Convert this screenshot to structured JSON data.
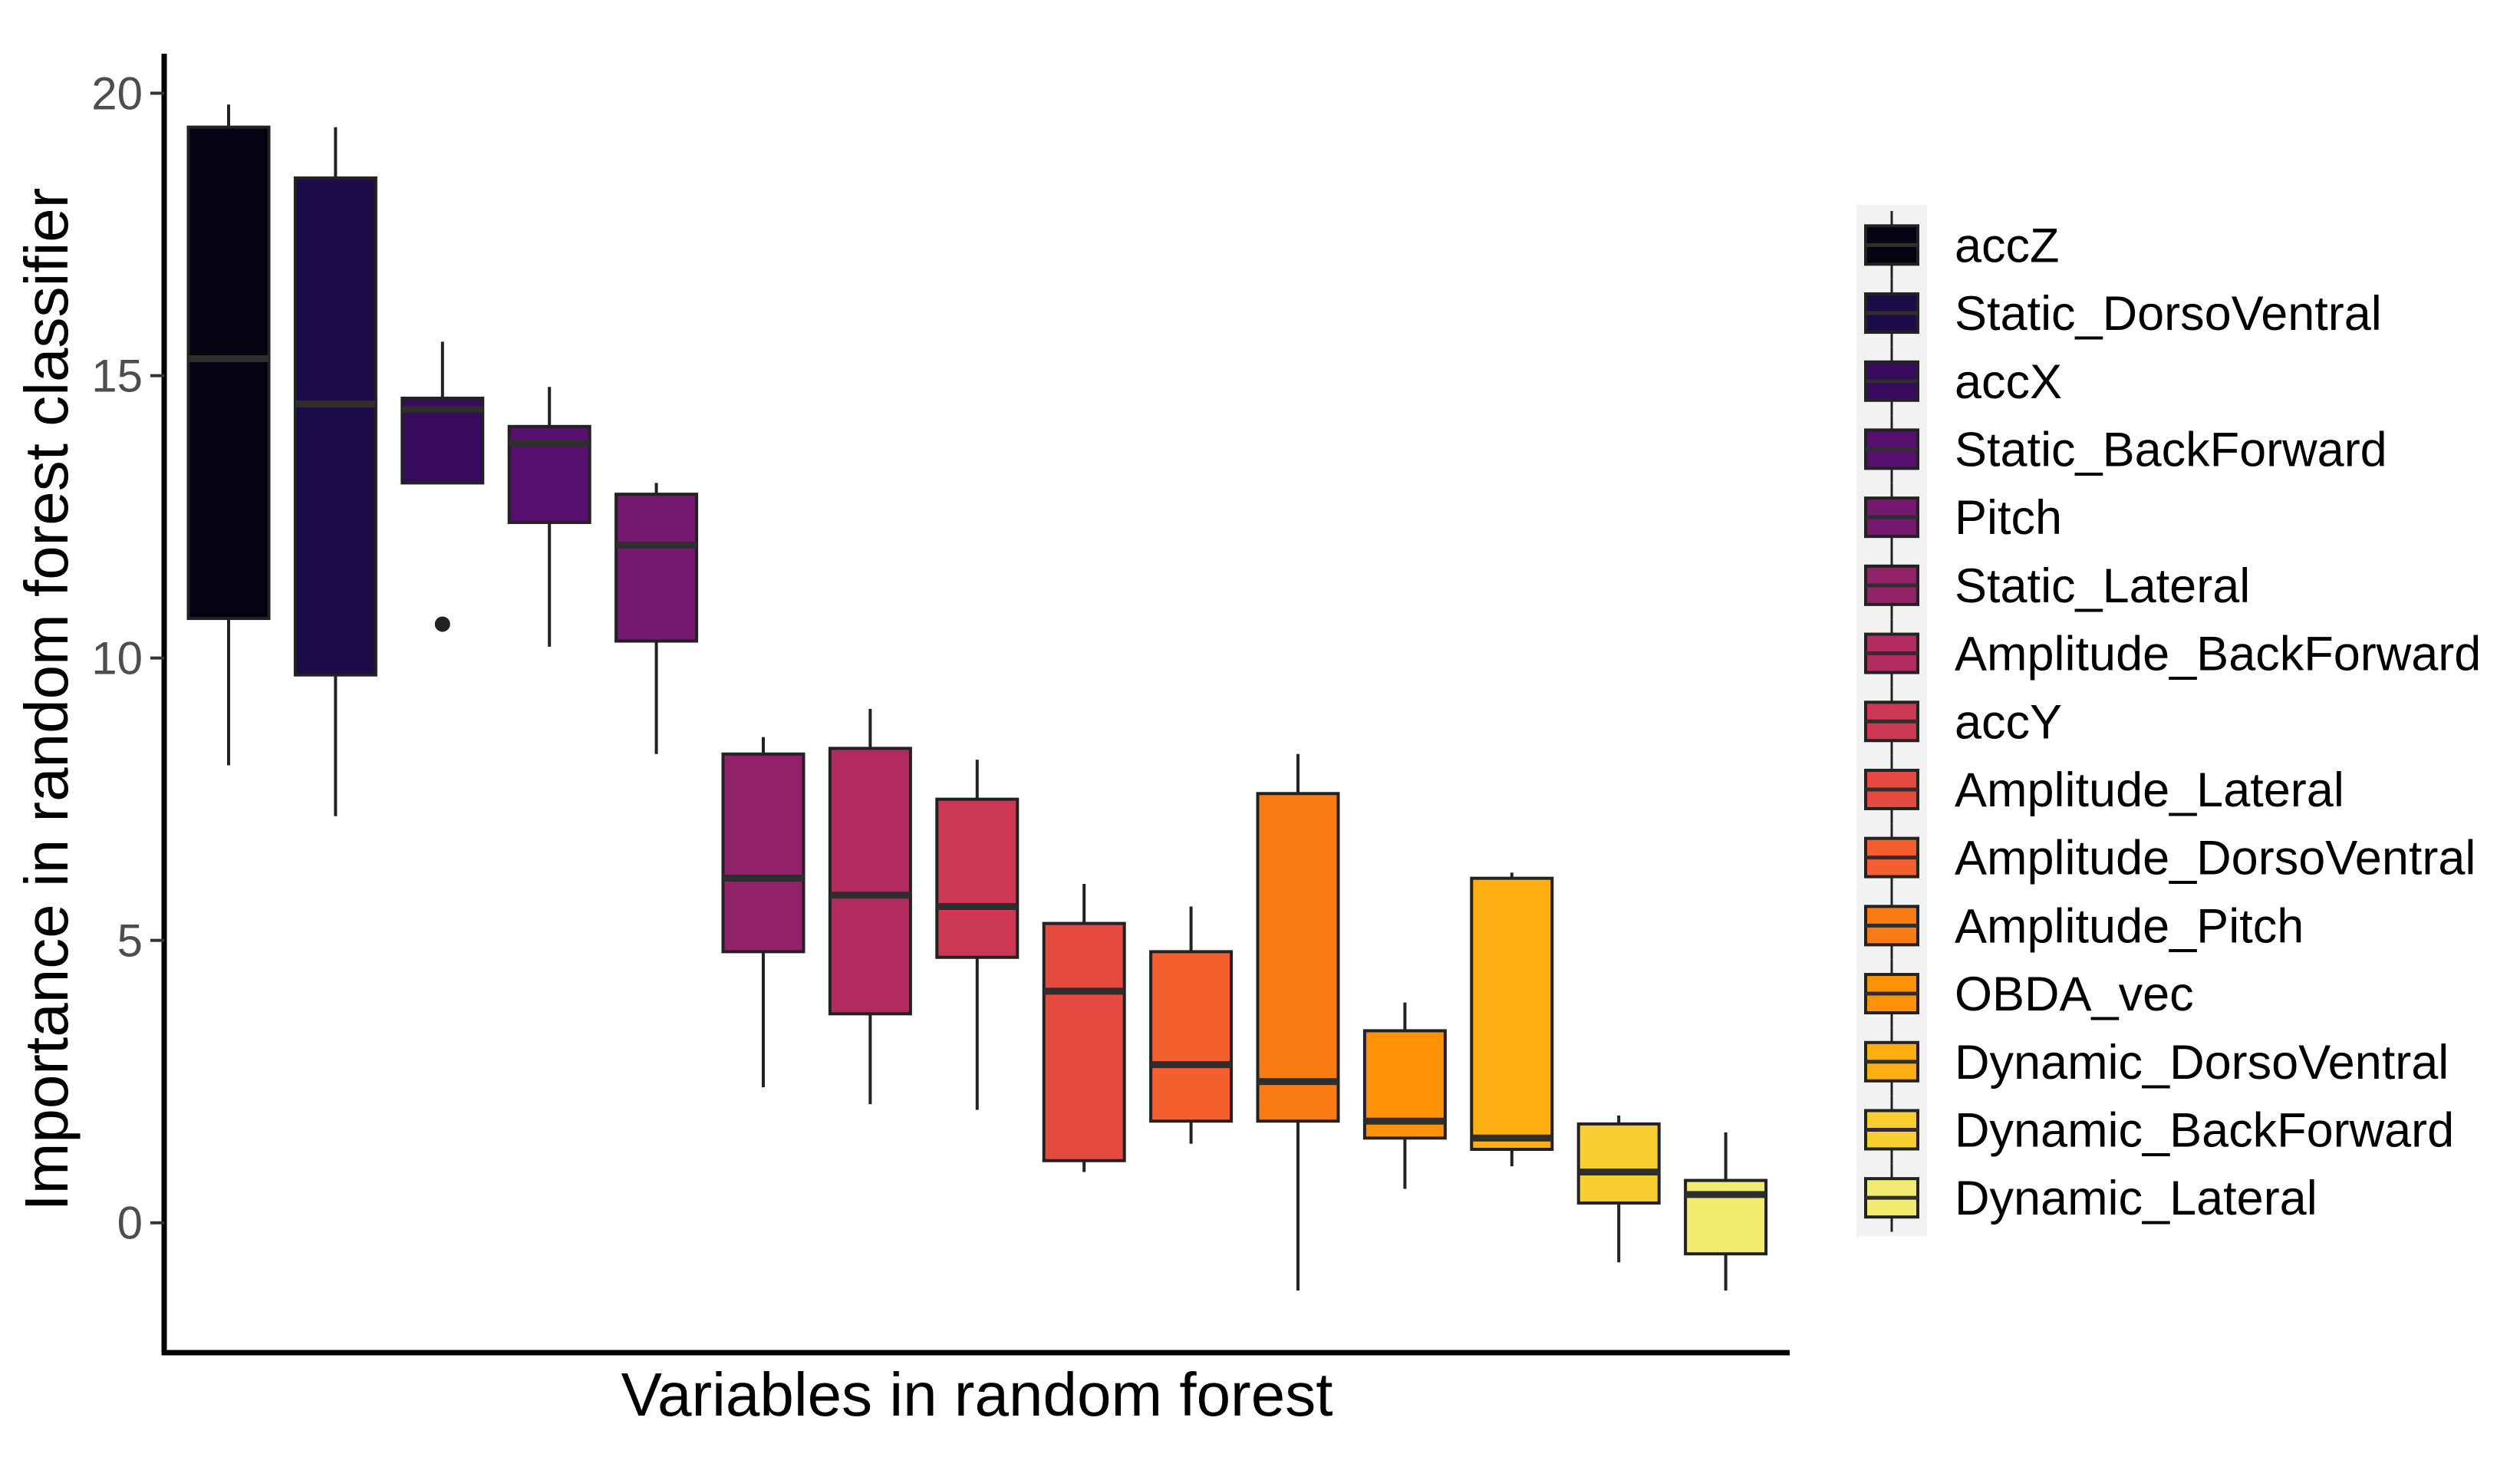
{
  "chart_data": {
    "type": "boxplot",
    "title": "",
    "xlabel": "Variables in random forest",
    "ylabel": "Importance in random forest classifier",
    "ylim": [
      -2.3,
      20.7
    ],
    "yticks": [
      0,
      5,
      10,
      15,
      20
    ],
    "grid": false,
    "legend_position": "right",
    "categories": [
      "accZ",
      "Static_DorsoVentral",
      "accX",
      "Static_BackForward",
      "Pitch",
      "Static_Lateral",
      "Amplitude_BackForward",
      "accY",
      "Amplitude_Lateral",
      "Amplitude_DorsoVentral",
      "Amplitude_Pitch",
      "OBDA_vec",
      "Dynamic_DorsoVentral",
      "Dynamic_BackForward",
      "Dynamic_Lateral"
    ],
    "colors": [
      "#05030f",
      "#1c0b47",
      "#370a5e",
      "#560f6d",
      "#74196e",
      "#92216a",
      "#b12b5f",
      "#cc3751",
      "#e44a3f",
      "#f3602d",
      "#fa7a14",
      "#fd9207",
      "#fcae12",
      "#f7ce30",
      "#f2ec6e"
    ],
    "boxes": [
      {
        "whisker_low": 8.1,
        "q1": 10.7,
        "median": 15.3,
        "q3": 19.4,
        "whisker_high": 19.8,
        "outliers": []
      },
      {
        "whisker_low": 7.2,
        "q1": 9.7,
        "median": 14.5,
        "q3": 18.5,
        "whisker_high": 19.4,
        "outliers": []
      },
      {
        "whisker_low": 13.1,
        "q1": 13.1,
        "median": 14.4,
        "q3": 14.6,
        "whisker_high": 15.6,
        "outliers": [
          10.6
        ]
      },
      {
        "whisker_low": 10.2,
        "q1": 12.4,
        "median": 13.8,
        "q3": 14.1,
        "whisker_high": 14.8,
        "outliers": []
      },
      {
        "whisker_low": 8.3,
        "q1": 10.3,
        "median": 12.0,
        "q3": 12.9,
        "whisker_high": 13.1,
        "outliers": []
      },
      {
        "whisker_low": 2.4,
        "q1": 4.8,
        "median": 6.1,
        "q3": 8.3,
        "whisker_high": 8.6,
        "outliers": []
      },
      {
        "whisker_low": 2.1,
        "q1": 3.7,
        "median": 5.8,
        "q3": 8.4,
        "whisker_high": 9.1,
        "outliers": []
      },
      {
        "whisker_low": 2.0,
        "q1": 4.7,
        "median": 5.6,
        "q3": 7.5,
        "whisker_high": 8.2,
        "outliers": []
      },
      {
        "whisker_low": 0.9,
        "q1": 1.1,
        "median": 4.1,
        "q3": 5.3,
        "whisker_high": 6.0,
        "outliers": []
      },
      {
        "whisker_low": 1.4,
        "q1": 1.8,
        "median": 2.8,
        "q3": 4.8,
        "whisker_high": 5.6,
        "outliers": []
      },
      {
        "whisker_low": -1.2,
        "q1": 1.8,
        "median": 2.5,
        "q3": 7.6,
        "whisker_high": 8.3,
        "outliers": []
      },
      {
        "whisker_low": 0.6,
        "q1": 1.5,
        "median": 1.8,
        "q3": 3.4,
        "whisker_high": 3.9,
        "outliers": []
      },
      {
        "whisker_low": 1.0,
        "q1": 1.3,
        "median": 1.5,
        "q3": 6.1,
        "whisker_high": 6.2,
        "outliers": []
      },
      {
        "whisker_low": -0.7,
        "q1": 0.35,
        "median": 0.9,
        "q3": 1.75,
        "whisker_high": 1.9,
        "outliers": []
      },
      {
        "whisker_low": -1.2,
        "q1": -0.55,
        "median": 0.5,
        "q3": 0.75,
        "whisker_high": 1.6,
        "outliers": []
      }
    ]
  }
}
